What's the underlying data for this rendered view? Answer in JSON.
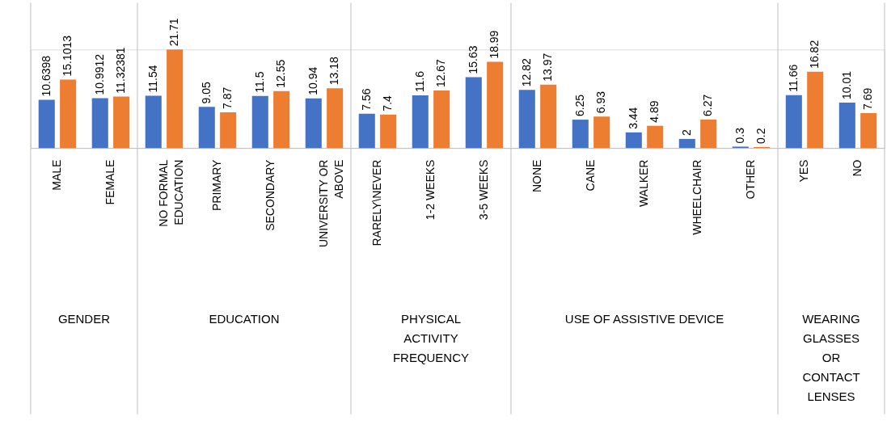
{
  "chart_data": {
    "type": "bar",
    "categories": [
      "MALE",
      "FEMALE",
      "NO FORMAL EDUCATION",
      "PRIMARY",
      "SECONDARY",
      "UNIVERSITY OR ABOVE",
      "RARELY\\NEVER",
      "1-2 WEEKS",
      "3-5 WEEKS",
      "NONE",
      "CANE",
      "WALKER",
      "WHEELCHAIR",
      "OTHER",
      "YES",
      "NO"
    ],
    "series": [
      {
        "color": "#4472c4",
        "values": [
          10.6398,
          10.9912,
          11.54,
          9.05,
          11.5,
          10.94,
          7.56,
          11.6,
          15.63,
          12.82,
          6.25,
          3.44,
          2,
          0.3,
          11.66,
          10.01
        ]
      },
      {
        "color": "#ed7d31",
        "values": [
          15.1013,
          11.32381,
          21.71,
          7.87,
          12.55,
          13.18,
          7.4,
          12.67,
          18.99,
          13.97,
          6.93,
          4.89,
          6.27,
          0.2,
          16.82,
          7.69
        ]
      }
    ],
    "data_labels": true,
    "annotations": [
      "GENDER",
      "EDUCATION",
      "PHYSICAL ACTIVITY FREQUENCY",
      "USE OF ASSISTIVE DEVICE",
      "WEARING GLASSES OR CONTACT LENSES"
    ],
    "grid": false,
    "legend": false
  }
}
